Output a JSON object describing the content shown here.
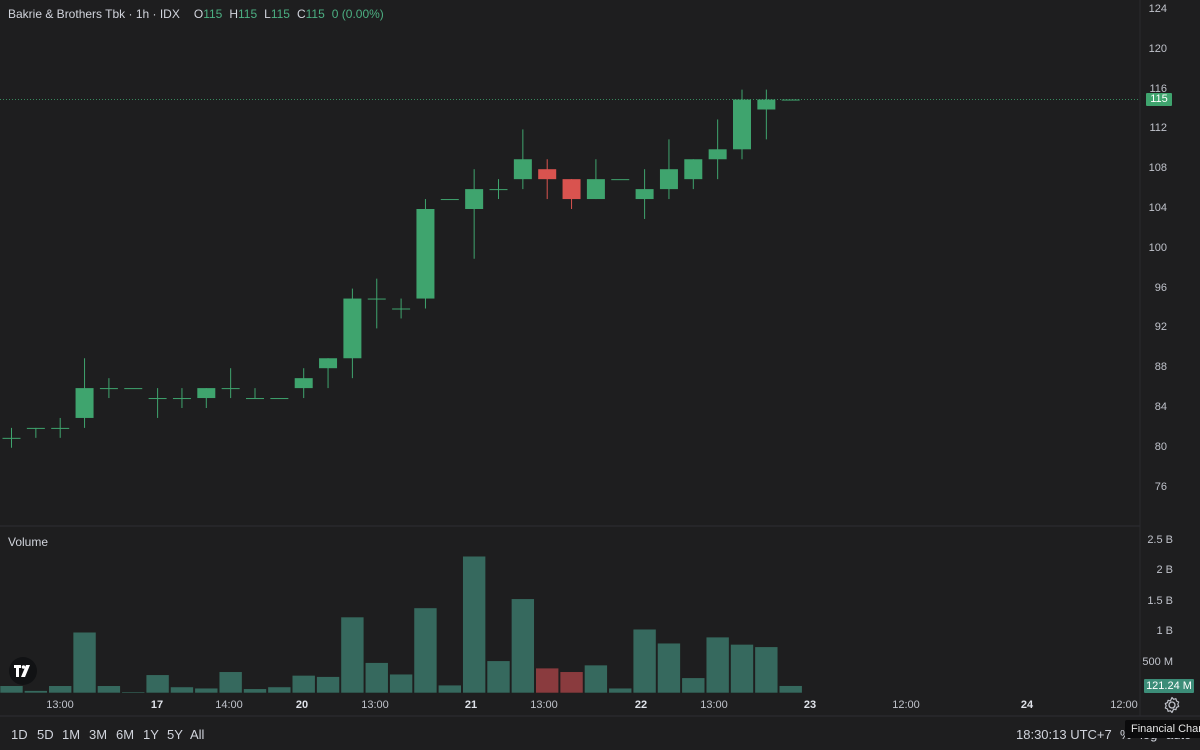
{
  "legend": {
    "symbol": "Bakrie & Brothers Tbk · 1h · IDX",
    "open_key": "O",
    "open": "115",
    "high_key": "H",
    "high": "115",
    "low_key": "L",
    "low": "115",
    "close_key": "C",
    "close": "115",
    "change": "0 (0.00%)"
  },
  "volume_title": "Volume",
  "price_axis": [
    "124",
    "120",
    "116",
    "112",
    "108",
    "104",
    "100",
    "96",
    "92",
    "88",
    "84",
    "80",
    "76"
  ],
  "volume_axis": [
    "2.5 B",
    "2 B",
    "1.5 B",
    "1 B",
    "500 M"
  ],
  "price_badge": "115",
  "volume_badge": "121.24 M",
  "time_axis": [
    {
      "label": "13:00",
      "bold": false
    },
    {
      "label": "17",
      "bold": true
    },
    {
      "label": "14:00",
      "bold": false
    },
    {
      "label": "20",
      "bold": true
    },
    {
      "label": "13:00",
      "bold": false
    },
    {
      "label": "21",
      "bold": true
    },
    {
      "label": "13:00",
      "bold": false
    },
    {
      "label": "22",
      "bold": true
    },
    {
      "label": "13:00",
      "bold": false
    },
    {
      "label": "23",
      "bold": true
    },
    {
      "label": "12:00",
      "bold": false
    },
    {
      "label": "24",
      "bold": true
    },
    {
      "label": "12:00",
      "bold": false
    }
  ],
  "bottom_bar": {
    "ranges": [
      "1D",
      "5D",
      "1M",
      "3M",
      "6M",
      "1Y",
      "5Y",
      "All"
    ],
    "clock": "18:30:13 UTC+7",
    "percent": "%",
    "log": "log",
    "auto": "auto"
  },
  "tooltip": "Financial Chart",
  "colors": {
    "up": "#3fa46e",
    "down": "#d9534f",
    "vol_up": "#36695e",
    "vol_down": "#8a3b3e",
    "background": "#1e1e1f"
  },
  "icons": {
    "logo": "tradingview-logo-icon",
    "settings": "gear-icon"
  },
  "chart_data": {
    "type": "candlestick",
    "title": "Bakrie & Brothers Tbk · 1h · IDX",
    "ylim": [
      73,
      125
    ],
    "volume_ylim": [
      0,
      2500000000
    ],
    "grid": false,
    "candles": [
      {
        "o": 81,
        "h": 82,
        "l": 80,
        "c": 81,
        "v": 120000000
      },
      {
        "o": 82,
        "h": 82,
        "l": 81,
        "c": 82,
        "v": 40000000
      },
      {
        "o": 82,
        "h": 83,
        "l": 81,
        "c": 82,
        "v": 120000000
      },
      {
        "o": 83,
        "h": 89,
        "l": 82,
        "c": 86,
        "v": 1000000000
      },
      {
        "o": 86,
        "h": 87,
        "l": 85,
        "c": 86,
        "v": 120000000
      },
      {
        "o": 86,
        "h": 86,
        "l": 86,
        "c": 86,
        "v": 20000000
      },
      {
        "o": 85,
        "h": 86,
        "l": 83,
        "c": 85,
        "v": 300000000
      },
      {
        "o": 85,
        "h": 86,
        "l": 84,
        "c": 85,
        "v": 100000000
      },
      {
        "o": 85,
        "h": 86,
        "l": 84,
        "c": 86,
        "v": 80000000
      },
      {
        "o": 86,
        "h": 88,
        "l": 85,
        "c": 86,
        "v": 350000000
      },
      {
        "o": 85,
        "h": 86,
        "l": 85,
        "c": 85,
        "v": 70000000
      },
      {
        "o": 85,
        "h": 85,
        "l": 85,
        "c": 85,
        "v": 100000000
      },
      {
        "o": 86,
        "h": 88,
        "l": 85,
        "c": 87,
        "v": 290000000
      },
      {
        "o": 88,
        "h": 89,
        "l": 86,
        "c": 89,
        "v": 270000000
      },
      {
        "o": 89,
        "h": 96,
        "l": 87,
        "c": 95,
        "v": 1250000000
      },
      {
        "o": 95,
        "h": 97,
        "l": 92,
        "c": 95,
        "v": 500000000
      },
      {
        "o": 94,
        "h": 95,
        "l": 93,
        "c": 94,
        "v": 310000000
      },
      {
        "o": 95,
        "h": 105,
        "l": 94,
        "c": 104,
        "v": 1400000000
      },
      {
        "o": 105,
        "h": 105,
        "l": 105,
        "c": 105,
        "v": 130000000
      },
      {
        "o": 104,
        "h": 108,
        "l": 99,
        "c": 106,
        "v": 2250000000
      },
      {
        "o": 106,
        "h": 107,
        "l": 105,
        "c": 106,
        "v": 530000000
      },
      {
        "o": 107,
        "h": 112,
        "l": 106,
        "c": 109,
        "v": 1550000000
      },
      {
        "o": 108,
        "h": 109,
        "l": 105,
        "c": 107,
        "v": 410000000
      },
      {
        "o": 107,
        "h": 107,
        "l": 104,
        "c": 105,
        "v": 350000000
      },
      {
        "o": 105,
        "h": 109,
        "l": 105,
        "c": 107,
        "v": 460000000
      },
      {
        "o": 107,
        "h": 107,
        "l": 107,
        "c": 107,
        "v": 80000000
      },
      {
        "o": 105,
        "h": 108,
        "l": 103,
        "c": 106,
        "v": 1050000000
      },
      {
        "o": 106,
        "h": 111,
        "l": 105,
        "c": 108,
        "v": 820000000
      },
      {
        "o": 107,
        "h": 109,
        "l": 106,
        "c": 109,
        "v": 250000000
      },
      {
        "o": 109,
        "h": 113,
        "l": 107,
        "c": 110,
        "v": 920000000
      },
      {
        "o": 110,
        "h": 116,
        "l": 109,
        "c": 115,
        "v": 800000000
      },
      {
        "o": 114,
        "h": 116,
        "l": 111,
        "c": 115,
        "v": 760000000
      },
      {
        "o": 115,
        "h": 115,
        "l": 115,
        "c": 115,
        "v": 121240000
      }
    ],
    "volume_label": "Volume"
  }
}
